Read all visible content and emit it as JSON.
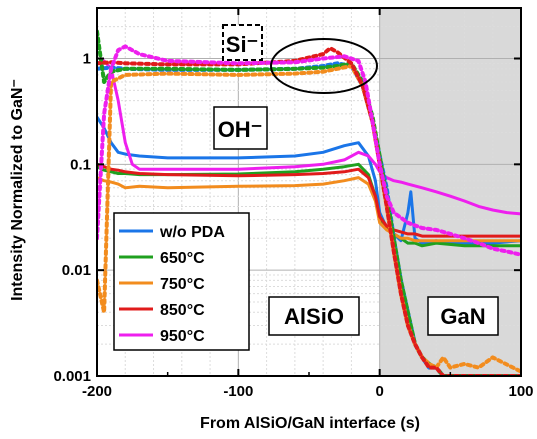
{
  "chart_data": {
    "type": "line",
    "xlabel": "From AlSiO/GaN interface (s)",
    "ylabel": "Intensity Normalized to GaN⁻",
    "xlim": [
      -200,
      100
    ],
    "ylim": [
      0.001,
      3
    ],
    "yscale": "log",
    "x_ticks": [
      -200,
      -100,
      0,
      100
    ],
    "x_tick_labels": [
      "-200",
      "-100",
      "0",
      "100"
    ],
    "y_ticks": [
      0.001,
      0.01,
      0.1,
      1
    ],
    "y_tick_labels": [
      "0.001",
      "0.01",
      "0.1",
      "1"
    ],
    "grid": true,
    "shaded_region": {
      "x_from": 0,
      "x_to": 100,
      "color": "#d9d9d9"
    },
    "legend": {
      "position": "lower-left",
      "entries": [
        "w/o PDA",
        "650°C",
        "750°C",
        "850°C",
        "950°C"
      ]
    },
    "annotations": {
      "si": "Si⁻",
      "oh": "OH⁻",
      "alsio": "AlSiO",
      "gan": "GaN"
    },
    "series": [
      {
        "name": "w/o PDA",
        "color": "#1a75e8",
        "line": "solid",
        "signal": "OH-",
        "x": [
          -200,
          -195,
          -190,
          -185,
          -180,
          -170,
          -150,
          -100,
          -60,
          -40,
          -25,
          -15,
          -8,
          -3,
          0,
          5,
          10,
          15,
          20,
          22,
          25,
          30,
          40,
          50,
          60,
          80,
          100
        ],
        "y": [
          0.28,
          0.22,
          0.16,
          0.13,
          0.125,
          0.12,
          0.115,
          0.115,
          0.12,
          0.13,
          0.15,
          0.16,
          0.12,
          0.07,
          0.035,
          0.025,
          0.022,
          0.019,
          0.035,
          0.055,
          0.02,
          0.018,
          0.019,
          0.018,
          0.018,
          0.018,
          0.019
        ]
      },
      {
        "name": "650°C",
        "color": "#1fa01f",
        "line": "solid",
        "signal": "OH-",
        "x": [
          -200,
          -195,
          -190,
          -185,
          -180,
          -170,
          -150,
          -100,
          -60,
          -40,
          -25,
          -15,
          -8,
          -3,
          0,
          5,
          10,
          15,
          20,
          25,
          30,
          40,
          60,
          80,
          100
        ],
        "y": [
          0.095,
          0.088,
          0.085,
          0.082,
          0.082,
          0.08,
          0.08,
          0.081,
          0.085,
          0.09,
          0.095,
          0.1,
          0.08,
          0.05,
          0.03,
          0.025,
          0.022,
          0.02,
          0.018,
          0.018,
          0.017,
          0.018,
          0.017,
          0.017,
          0.017
        ]
      },
      {
        "name": "750°C",
        "color": "#f28c1e",
        "line": "solid",
        "signal": "OH-",
        "x": [
          -200,
          -195,
          -190,
          -185,
          -180,
          -170,
          -150,
          -100,
          -60,
          -40,
          -25,
          -15,
          -8,
          -3,
          0,
          5,
          10,
          15,
          20,
          25,
          30,
          40,
          60,
          80,
          100
        ],
        "y": [
          0.075,
          0.07,
          0.068,
          0.065,
          0.06,
          0.062,
          0.06,
          0.062,
          0.063,
          0.065,
          0.07,
          0.075,
          0.065,
          0.045,
          0.028,
          0.024,
          0.022,
          0.02,
          0.02,
          0.019,
          0.019,
          0.019,
          0.019,
          0.019,
          0.019
        ]
      },
      {
        "name": "850°C",
        "color": "#e01b1b",
        "line": "solid",
        "signal": "OH-",
        "x": [
          -200,
          -195,
          -190,
          -185,
          -180,
          -170,
          -150,
          -100,
          -60,
          -40,
          -25,
          -15,
          -8,
          -3,
          0,
          5,
          10,
          15,
          20,
          25,
          30,
          40,
          60,
          80,
          100
        ],
        "y": [
          0.1,
          0.095,
          0.09,
          0.088,
          0.085,
          0.082,
          0.08,
          0.078,
          0.08,
          0.082,
          0.085,
          0.09,
          0.075,
          0.05,
          0.032,
          0.026,
          0.024,
          0.023,
          0.022,
          0.022,
          0.021,
          0.021,
          0.021,
          0.021,
          0.021
        ]
      },
      {
        "name": "950°C",
        "color": "#ee1fee",
        "line": "solid",
        "signal": "OH-",
        "x": [
          -200,
          -195,
          -190,
          -185,
          -180,
          -175,
          -170,
          -150,
          -100,
          -60,
          -40,
          -25,
          -15,
          -8,
          -3,
          0,
          5,
          10,
          15,
          20,
          30,
          40,
          50,
          60,
          70,
          80,
          90,
          100
        ],
        "y": [
          0.9,
          0.95,
          0.8,
          0.4,
          0.16,
          0.1,
          0.09,
          0.09,
          0.09,
          0.095,
          0.1,
          0.11,
          0.13,
          0.12,
          0.1,
          0.085,
          0.075,
          0.07,
          0.068,
          0.065,
          0.06,
          0.055,
          0.05,
          0.045,
          0.04,
          0.037,
          0.035,
          0.034
        ]
      },
      {
        "name": "w/o PDA",
        "color": "#1a75e8",
        "line": "dotted",
        "signal": "Si-",
        "x": [
          -200,
          -190,
          -180,
          -150,
          -100,
          -60,
          -40,
          -30,
          -20,
          -12,
          -5,
          0,
          5,
          10,
          15,
          20,
          25,
          30,
          35,
          40,
          45,
          50,
          60,
          70,
          80,
          100
        ],
        "y": [
          0.8,
          0.82,
          0.8,
          0.78,
          0.78,
          0.8,
          0.85,
          0.9,
          0.85,
          0.55,
          0.25,
          0.12,
          0.06,
          0.02,
          0.008,
          0.004,
          0.002,
          0.0015,
          0.0012,
          0.0012,
          0.001,
          0.001,
          0.001,
          0.001,
          0.001,
          0.001
        ]
      },
      {
        "name": "650°C",
        "color": "#1fa01f",
        "line": "dotted",
        "signal": "Si-",
        "x": [
          -200,
          -195,
          -190,
          -180,
          -150,
          -100,
          -60,
          -40,
          -30,
          -20,
          -12,
          -5,
          0,
          5,
          10,
          15,
          20,
          25,
          30,
          35,
          40,
          45,
          50,
          60,
          70,
          80,
          100
        ],
        "y": [
          1.8,
          0.6,
          0.75,
          0.8,
          0.8,
          0.78,
          0.8,
          0.82,
          0.85,
          0.9,
          0.6,
          0.28,
          0.12,
          0.05,
          0.02,
          0.008,
          0.004,
          0.002,
          0.0015,
          0.0013,
          0.0012,
          0.001,
          0.001,
          0.001,
          0.001,
          0.001,
          0.001
        ]
      },
      {
        "name": "750°C",
        "color": "#f28c1e",
        "line": "dotted",
        "signal": "Si-",
        "x": [
          -200,
          -195,
          -190,
          -180,
          -150,
          -100,
          -60,
          -40,
          -30,
          -20,
          -12,
          -5,
          0,
          5,
          10,
          15,
          20,
          25,
          30,
          35,
          40,
          45,
          50,
          60,
          70,
          80,
          100
        ],
        "y": [
          0.008,
          0.004,
          0.6,
          0.7,
          0.72,
          0.7,
          0.72,
          0.75,
          0.8,
          0.85,
          0.55,
          0.25,
          0.1,
          0.04,
          0.015,
          0.006,
          0.003,
          0.002,
          0.0015,
          0.0013,
          0.0012,
          0.0015,
          0.0012,
          0.0013,
          0.0012,
          0.0015,
          0.0011
        ]
      },
      {
        "name": "850°C",
        "color": "#e01b1b",
        "line": "dotted",
        "signal": "Si-",
        "x": [
          -200,
          -190,
          -180,
          -150,
          -100,
          -60,
          -40,
          -35,
          -30,
          -20,
          -12,
          -5,
          0,
          5,
          10,
          15,
          20,
          25,
          30,
          35,
          40,
          45,
          50,
          60,
          70,
          80,
          100
        ],
        "y": [
          0.9,
          0.92,
          0.9,
          0.88,
          0.88,
          0.95,
          1.1,
          1.25,
          1.15,
          0.9,
          0.55,
          0.25,
          0.1,
          0.04,
          0.015,
          0.006,
          0.003,
          0.002,
          0.0015,
          0.0012,
          0.0012,
          0.001,
          0.001,
          0.001,
          0.001,
          0.001,
          0.001
        ]
      },
      {
        "name": "950°C",
        "color": "#ee1fee",
        "line": "dotted",
        "signal": "Si-",
        "x": [
          -200,
          -195,
          -190,
          -185,
          -180,
          -170,
          -150,
          -100,
          -60,
          -40,
          -25,
          -15,
          -10,
          -5,
          0,
          5,
          10,
          20,
          30,
          40,
          50,
          60,
          70,
          80,
          90,
          100
        ],
        "y": [
          0.02,
          0.3,
          0.8,
          1.2,
          1.3,
          1.1,
          0.95,
          0.9,
          0.92,
          1.0,
          1.05,
          0.95,
          0.6,
          0.25,
          0.1,
          0.05,
          0.035,
          0.028,
          0.025,
          0.024,
          0.022,
          0.02,
          0.018,
          0.016,
          0.015,
          0.014
        ]
      }
    ]
  }
}
